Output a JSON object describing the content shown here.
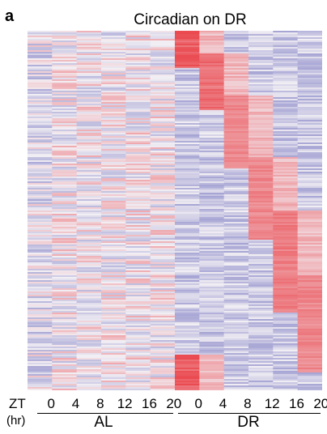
{
  "panel_label": "a",
  "chart_data": {
    "type": "heatmap",
    "title": "Circadian on DR",
    "x_axis_label": "ZT",
    "x_axis_unit": "(hr)",
    "columns": [
      {
        "group": "AL",
        "zt": "0"
      },
      {
        "group": "AL",
        "zt": "4"
      },
      {
        "group": "AL",
        "zt": "8"
      },
      {
        "group": "AL",
        "zt": "12"
      },
      {
        "group": "AL",
        "zt": "16"
      },
      {
        "group": "AL",
        "zt": "20"
      },
      {
        "group": "DR",
        "zt": "0"
      },
      {
        "group": "DR",
        "zt": "4"
      },
      {
        "group": "DR",
        "zt": "8"
      },
      {
        "group": "DR",
        "zt": "12"
      },
      {
        "group": "DR",
        "zt": "16"
      },
      {
        "group": "DR",
        "zt": "20"
      }
    ],
    "groups": [
      "AL",
      "DR"
    ],
    "colors": {
      "low": "#5a5ab4",
      "mid": "#f2eff4",
      "high": "#e8262c"
    },
    "dr_peak_bands": [
      {
        "column": 6,
        "row_start": 0.0,
        "row_end": 0.1,
        "intensity": 0.85
      },
      {
        "column": 7,
        "row_start": 0.06,
        "row_end": 0.22,
        "intensity": 0.75
      },
      {
        "column": 8,
        "row_start": 0.18,
        "row_end": 0.38,
        "intensity": 0.6
      },
      {
        "column": 9,
        "row_start": 0.35,
        "row_end": 0.58,
        "intensity": 0.6
      },
      {
        "column": 10,
        "row_start": 0.5,
        "row_end": 0.78,
        "intensity": 0.65
      },
      {
        "column": 11,
        "row_start": 0.68,
        "row_end": 0.95,
        "intensity": 0.6
      },
      {
        "column": 6,
        "row_start": 0.9,
        "row_end": 1.0,
        "intensity": 0.85
      }
    ]
  }
}
